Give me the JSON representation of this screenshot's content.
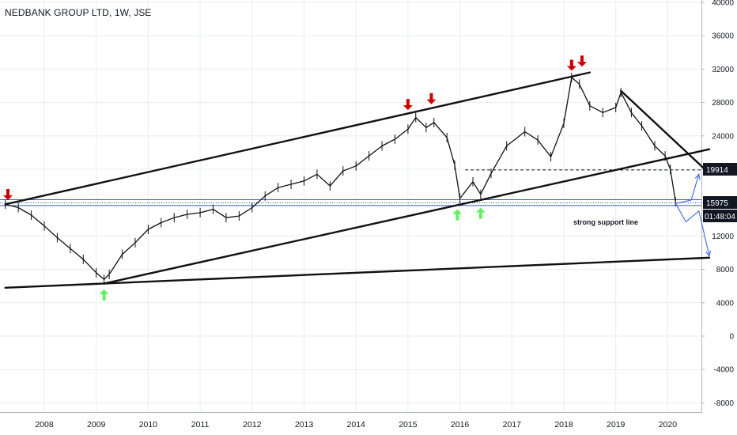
{
  "header": {
    "title": "NEDBANK GROUP LTD, 1W, JSE"
  },
  "price_labels": {
    "level_high": "19914",
    "level_support": "15975",
    "countdown": "01:48:04"
  },
  "annotation": "strong support line",
  "chart_data": {
    "type": "line",
    "title": "NEDBANK GROUP LTD, 1W, JSE",
    "ylim": [
      -9000,
      40000
    ],
    "yticks": [
      "40000",
      "36000",
      "32000",
      "28000",
      "24000",
      "20000",
      "16000",
      "12000",
      "8000",
      "4000",
      "0",
      "-4000",
      "-8000"
    ],
    "xticks": [
      "2008",
      "2009",
      "2010",
      "2011",
      "2012",
      "2013",
      "2014",
      "2015",
      "2016",
      "2017",
      "2018",
      "2019",
      "2020"
    ],
    "grid": true,
    "x": [
      2007.25,
      2007.5,
      2007.75,
      2008.0,
      2008.25,
      2008.5,
      2008.75,
      2009.0,
      2009.15,
      2009.25,
      2009.5,
      2009.75,
      2010.0,
      2010.25,
      2010.5,
      2010.75,
      2011.0,
      2011.25,
      2011.5,
      2011.75,
      2012.0,
      2012.25,
      2012.5,
      2012.75,
      2013.0,
      2013.25,
      2013.5,
      2013.75,
      2014.0,
      2014.25,
      2014.5,
      2014.75,
      2015.0,
      2015.15,
      2015.35,
      2015.5,
      2015.75,
      2015.9,
      2016.0,
      2016.25,
      2016.4,
      2016.6,
      2016.9,
      2017.25,
      2017.5,
      2017.75,
      2018.0,
      2018.15,
      2018.3,
      2018.5,
      2018.75,
      2019.0,
      2019.1,
      2019.3,
      2019.5,
      2019.75,
      2019.95,
      2020.05,
      2020.15
    ],
    "y": [
      15800,
      15400,
      14500,
      13200,
      11800,
      10500,
      9200,
      7600,
      6800,
      7400,
      9800,
      11200,
      12800,
      13600,
      14200,
      14600,
      14800,
      15200,
      14200,
      14400,
      15400,
      16800,
      17800,
      18200,
      18600,
      19400,
      18000,
      19800,
      20400,
      21600,
      22800,
      23600,
      24800,
      26200,
      25000,
      25600,
      23800,
      20500,
      16500,
      18500,
      17000,
      19500,
      22800,
      24500,
      23500,
      21500,
      25500,
      31000,
      30200,
      27600,
      26800,
      27400,
      29200,
      26800,
      25200,
      22800,
      21600,
      20000,
      16100
    ],
    "trendlines": [
      {
        "from": [
          2007.25,
          15800
        ],
        "to": [
          2018.5,
          31600
        ]
      },
      {
        "from": [
          2009.15,
          6300
        ],
        "to": [
          2020.8,
          22400
        ]
      },
      {
        "from": [
          2007.25,
          5800
        ],
        "to": [
          2020.8,
          9400
        ]
      },
      {
        "from": [
          2019.1,
          29400
        ],
        "to": [
          2020.8,
          19500
        ]
      }
    ],
    "horizontal_levels": [
      {
        "value": 16350,
        "style": "solid"
      },
      {
        "value": 15975,
        "style": "dotted"
      },
      {
        "value": 15650,
        "style": "solid"
      },
      {
        "value": 19914,
        "style": "dashed",
        "from": 2016.1,
        "to": 2020.8
      }
    ],
    "markers": [
      {
        "x": 2007.3,
        "y": 16300,
        "dir": "down",
        "color": "#cc0000"
      },
      {
        "x": 2015.0,
        "y": 27100,
        "dir": "down",
        "color": "#cc0000"
      },
      {
        "x": 2015.45,
        "y": 27800,
        "dir": "down",
        "color": "#cc0000"
      },
      {
        "x": 2018.15,
        "y": 31800,
        "dir": "down",
        "color": "#cc0000"
      },
      {
        "x": 2018.35,
        "y": 32300,
        "dir": "down",
        "color": "#cc0000"
      },
      {
        "x": 2009.15,
        "y": 5600,
        "dir": "up",
        "color": "#66ee66"
      },
      {
        "x": 2015.95,
        "y": 15200,
        "dir": "up",
        "color": "#66ee66"
      },
      {
        "x": 2016.4,
        "y": 15400,
        "dir": "up",
        "color": "#66ee66"
      }
    ],
    "projections": [
      {
        "points": [
          [
            2020.15,
            15900
          ],
          [
            2020.45,
            16300
          ],
          [
            2020.6,
            19400
          ]
        ],
        "color": "#4a6fe0"
      },
      {
        "points": [
          [
            2020.15,
            15900
          ],
          [
            2020.35,
            13700
          ],
          [
            2020.6,
            15000
          ],
          [
            2020.8,
            9600
          ]
        ],
        "color": "#4a6fe0"
      }
    ]
  }
}
